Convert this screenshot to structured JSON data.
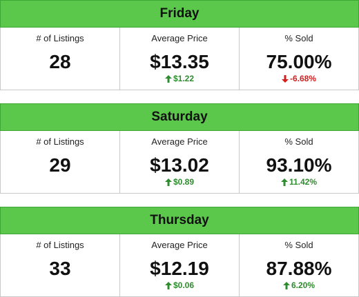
{
  "colors": {
    "header_bg": "#5bc84b",
    "up": "#2e8b2e",
    "down": "#d11f1f"
  },
  "labels": {
    "listings": "# of Listings",
    "avg_price": "Average Price",
    "pct_sold": "% Sold"
  },
  "cards": [
    {
      "day": "Friday",
      "listings": "28",
      "avg_price": "$13.35",
      "avg_price_delta": "$1.22",
      "avg_price_delta_dir": "up",
      "pct_sold": "75.00%",
      "pct_sold_delta": "-6.68%",
      "pct_sold_delta_dir": "down"
    },
    {
      "day": "Saturday",
      "listings": "29",
      "avg_price": "$13.02",
      "avg_price_delta": "$0.89",
      "avg_price_delta_dir": "up",
      "pct_sold": "93.10%",
      "pct_sold_delta": "11.42%",
      "pct_sold_delta_dir": "up"
    },
    {
      "day": "Thursday",
      "listings": "33",
      "avg_price": "$12.19",
      "avg_price_delta": "$0.06",
      "avg_price_delta_dir": "up",
      "pct_sold": "87.88%",
      "pct_sold_delta": "6.20%",
      "pct_sold_delta_dir": "up"
    }
  ]
}
